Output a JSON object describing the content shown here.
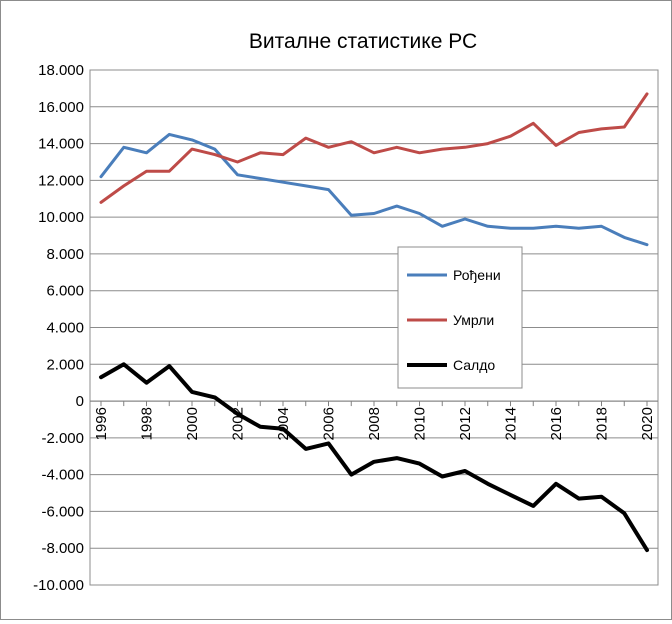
{
  "chart_data": {
    "type": "line",
    "title": "Виталне статистике РС",
    "x": [
      1996,
      1997,
      1998,
      1999,
      2000,
      2001,
      2002,
      2003,
      2004,
      2005,
      2006,
      2007,
      2008,
      2009,
      2010,
      2011,
      2012,
      2013,
      2014,
      2015,
      2016,
      2017,
      2018,
      2019,
      2020
    ],
    "x_tick_labels": [
      "1996",
      "1998",
      "2000",
      "2002",
      "2004",
      "2006",
      "2008",
      "2010",
      "2012",
      "2014",
      "2016",
      "2018",
      "2020"
    ],
    "y_tick_labels": [
      "18.000",
      "16.000",
      "14.000",
      "12.000",
      "10.000",
      "8.000",
      "6.000",
      "4.000",
      "2.000",
      "0",
      "-2.000",
      "-4.000",
      "-6.000",
      "-8.000",
      "-10.000"
    ],
    "ylim": [
      -10000,
      18000
    ],
    "y_step": 2000,
    "grid": true,
    "legend_position": "center-right",
    "series": [
      {
        "name": "Рођени",
        "color": "#4a7ebb",
        "values": [
          12200,
          13800,
          13500,
          14500,
          14200,
          13700,
          12300,
          12100,
          11900,
          11700,
          11500,
          10100,
          10200,
          10600,
          10200,
          9500,
          9900,
          9500,
          9400,
          9400,
          9500,
          9400,
          9500,
          8900,
          8500
        ]
      },
      {
        "name": "Умрли",
        "color": "#be4b48",
        "values": [
          10800,
          11700,
          12500,
          12500,
          13700,
          13400,
          13000,
          13500,
          13400,
          14300,
          13800,
          14100,
          13500,
          13800,
          13500,
          13700,
          13800,
          14000,
          14400,
          15100,
          13900,
          14600,
          14800,
          14900,
          16700
        ]
      },
      {
        "name": "Салдо",
        "color": "#000000",
        "values": [
          1300,
          2000,
          1000,
          1900,
          500,
          200,
          -700,
          -1400,
          -1500,
          -2600,
          -2300,
          -4000,
          -3300,
          -3100,
          -3400,
          -4100,
          -3800,
          -4500,
          -5100,
          -5700,
          -4500,
          -5300,
          -5200,
          -6100,
          -8100
        ]
      }
    ]
  }
}
